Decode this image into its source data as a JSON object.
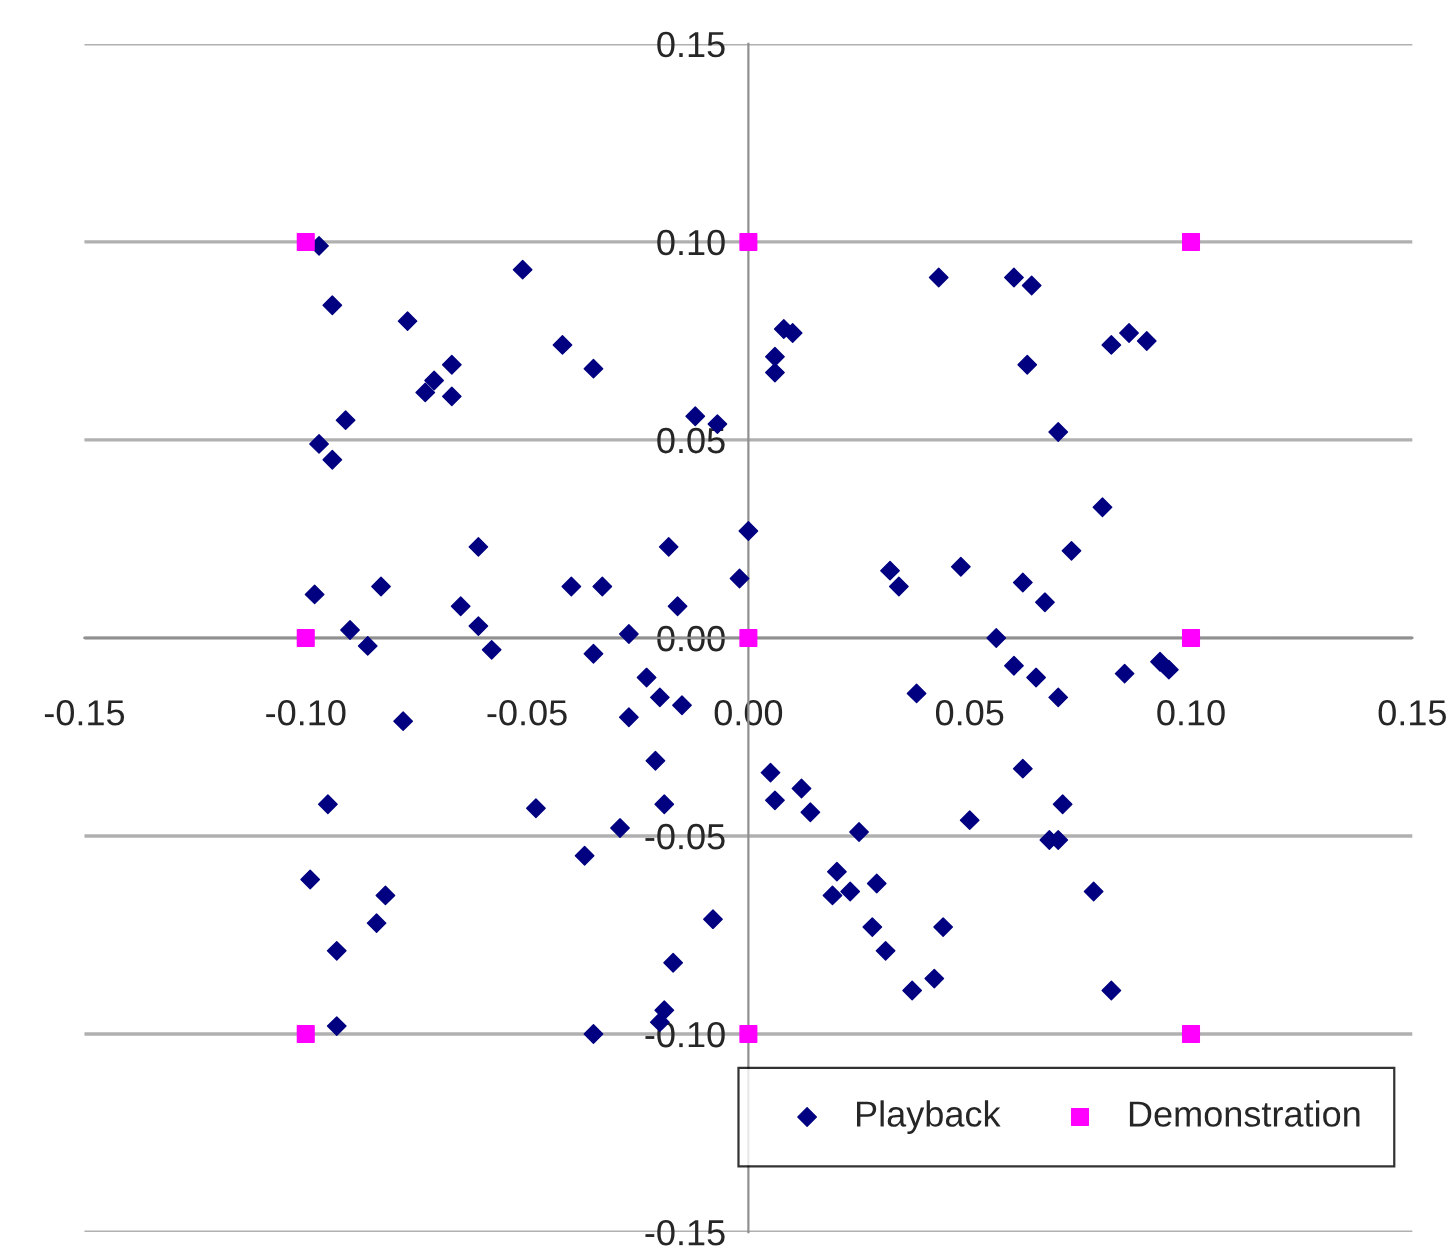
{
  "chart_data": {
    "type": "scatter",
    "series": [
      {
        "name": "Playback",
        "color": "#000080",
        "marker": "diamond",
        "x": [
          -0.097,
          -0.094,
          -0.077,
          -0.051,
          -0.042,
          -0.035,
          -0.067,
          -0.071,
          -0.073,
          -0.067,
          -0.091,
          -0.097,
          -0.094,
          -0.012,
          -0.007,
          0.0,
          -0.061,
          -0.018,
          -0.002,
          -0.098,
          -0.083,
          -0.04,
          -0.033,
          -0.065,
          -0.016,
          -0.09,
          -0.061,
          -0.027,
          -0.086,
          -0.058,
          -0.035,
          -0.023,
          -0.02,
          -0.015,
          -0.027,
          -0.078,
          -0.021,
          -0.095,
          -0.048,
          -0.019,
          -0.029,
          -0.037,
          -0.099,
          -0.082,
          -0.084,
          -0.008,
          -0.093,
          -0.017,
          -0.019,
          -0.02,
          -0.093,
          -0.035,
          0.043,
          0.06,
          0.064,
          0.008,
          0.01,
          0.006,
          0.006,
          0.063,
          0.082,
          0.086,
          0.09,
          0.07,
          0.08,
          0.073,
          0.032,
          0.034,
          0.048,
          0.062,
          0.067,
          0.056,
          0.06,
          0.065,
          0.07,
          0.085,
          0.093,
          0.095,
          0.038,
          0.005,
          0.006,
          0.012,
          0.014,
          0.025,
          0.062,
          0.071,
          0.068,
          0.07,
          0.05,
          0.02,
          0.019,
          0.023,
          0.029,
          0.028,
          0.044,
          0.031,
          0.042,
          0.037,
          0.078,
          0.082
        ],
        "values": [
          0.099,
          0.084,
          0.08,
          0.093,
          0.074,
          0.068,
          0.069,
          0.065,
          0.062,
          0.061,
          0.055,
          0.049,
          0.045,
          0.056,
          0.054,
          0.027,
          0.023,
          0.023,
          0.015,
          0.011,
          0.013,
          0.013,
          0.013,
          0.008,
          0.008,
          0.002,
          0.003,
          0.001,
          -0.002,
          -0.003,
          -0.004,
          -0.01,
          -0.015,
          -0.017,
          -0.02,
          -0.021,
          -0.031,
          -0.042,
          -0.043,
          -0.042,
          -0.048,
          -0.055,
          -0.061,
          -0.065,
          -0.072,
          -0.071,
          -0.079,
          -0.082,
          -0.094,
          -0.097,
          -0.098,
          -0.1,
          0.091,
          0.091,
          0.089,
          0.078,
          0.077,
          0.071,
          0.067,
          0.069,
          0.074,
          0.077,
          0.075,
          0.052,
          0.033,
          0.022,
          0.017,
          0.013,
          0.018,
          0.014,
          0.009,
          0.0,
          -0.007,
          -0.01,
          -0.015,
          -0.009,
          -0.006,
          -0.008,
          -0.014,
          -0.034,
          -0.041,
          -0.038,
          -0.044,
          -0.049,
          -0.033,
          -0.042,
          -0.051,
          -0.051,
          -0.046,
          -0.059,
          -0.065,
          -0.064,
          -0.062,
          -0.073,
          -0.073,
          -0.079,
          -0.086,
          -0.089,
          -0.064,
          -0.089
        ]
      },
      {
        "name": "Demonstration",
        "color": "#ff00ff",
        "marker": "square",
        "x": [
          -0.1,
          0.0,
          0.1,
          -0.1,
          0.0,
          0.1,
          -0.1,
          0.0,
          0.1
        ],
        "values": [
          0.1,
          0.1,
          0.1,
          0.0,
          0.0,
          0.0,
          -0.1,
          -0.1,
          -0.1
        ]
      }
    ],
    "xlim": [
      -0.15,
      0.15
    ],
    "xticks": [
      {
        "value": -0.15,
        "label": "-0.15"
      },
      {
        "value": -0.1,
        "label": "-0.10"
      },
      {
        "value": -0.05,
        "label": "-0.05"
      },
      {
        "value": 0.0,
        "label": "0.00"
      },
      {
        "value": 0.05,
        "label": "0.05"
      },
      {
        "value": 0.1,
        "label": "0.10"
      },
      {
        "value": 0.15,
        "label": "0.15"
      }
    ],
    "ylim": [
      -0.15,
      0.15
    ],
    "yticks": [
      {
        "value": -0.15,
        "label": "-0.15"
      },
      {
        "value": -0.1,
        "label": "-0.10"
      },
      {
        "value": -0.05,
        "label": "-0.05"
      },
      {
        "value": 0.0,
        "label": "0.00"
      },
      {
        "value": 0.05,
        "label": "0.05"
      },
      {
        "value": 0.1,
        "label": "0.10"
      },
      {
        "value": 0.15,
        "label": "0.15"
      }
    ],
    "grid": "y",
    "legend": "bottom right"
  }
}
